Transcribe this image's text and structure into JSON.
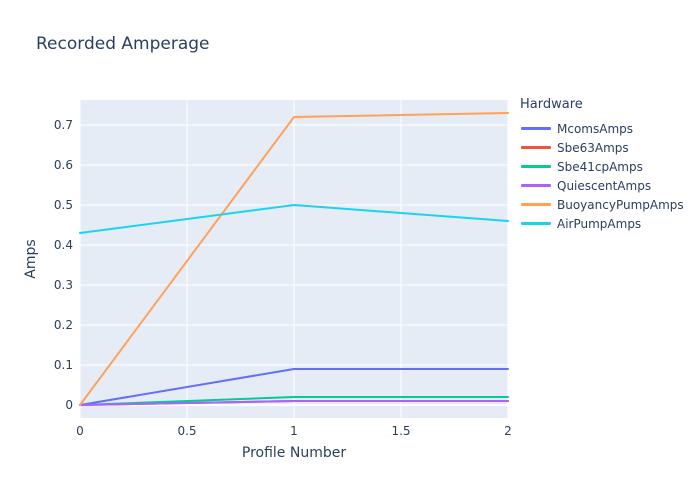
{
  "chart_data": {
    "type": "line",
    "title": "Recorded Amperage",
    "xlabel": "Profile Number",
    "ylabel": "Amps",
    "legend_title": "Hardware",
    "legend_position": "right",
    "grid": true,
    "plot_bg_color": "#e5ecf6",
    "grid_color": "#ffffff",
    "text_color": "#2a3f5f",
    "x": [
      0,
      1,
      2
    ],
    "xlim": [
      0,
      2
    ],
    "ylim": [
      -0.0325,
      0.7625
    ],
    "x_ticks": {
      "values": [
        0,
        0.5,
        1,
        1.5,
        2
      ],
      "labels": [
        "0",
        "0.5",
        "1",
        "1.5",
        "2"
      ]
    },
    "y_ticks": {
      "values": [
        0,
        0.1,
        0.2,
        0.3,
        0.4,
        0.5,
        0.6,
        0.7
      ],
      "labels": [
        "0",
        "0.1",
        "0.2",
        "0.3",
        "0.4",
        "0.5",
        "0.6",
        "0.7"
      ]
    },
    "series": [
      {
        "name": "McomsAmps",
        "color": "#636efa",
        "values": [
          0,
          0.09,
          0.09
        ]
      },
      {
        "name": "Sbe63Amps",
        "color": "#ef553b",
        "values": [
          0,
          0.01,
          0.01
        ]
      },
      {
        "name": "Sbe41cpAmps",
        "color": "#00cc96",
        "values": [
          0,
          0.02,
          0.02
        ]
      },
      {
        "name": "QuiescentAmps",
        "color": "#ab63fa",
        "values": [
          0,
          0.01,
          0.01
        ]
      },
      {
        "name": "BuoyancyPumpAmps",
        "color": "#ffa15a",
        "values": [
          0,
          0.72,
          0.73
        ]
      },
      {
        "name": "AirPumpAmps",
        "color": "#19d3f3",
        "values": [
          0.43,
          0.5,
          0.46
        ]
      }
    ]
  }
}
